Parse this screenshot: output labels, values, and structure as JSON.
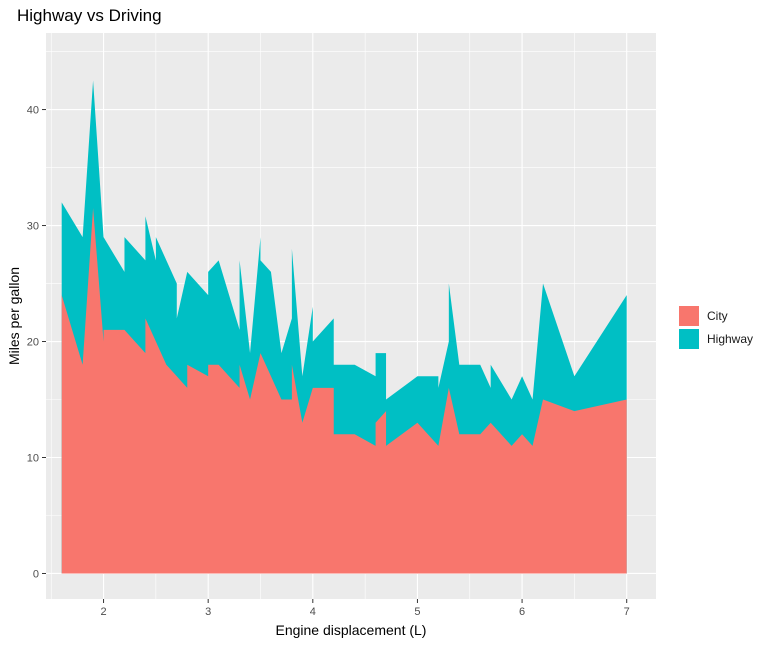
{
  "chart_data": {
    "type": "area",
    "title": "Highway vs Driving",
    "xlabel": "Engine displacement (L)",
    "ylabel": "Miles per gallon",
    "xlim": [
      1.45,
      7.28
    ],
    "ylim": [
      -2.2,
      46.6
    ],
    "x_ticks": [
      2,
      3,
      4,
      5,
      6,
      7
    ],
    "y_ticks": [
      0,
      10,
      20,
      30,
      40
    ],
    "grid": true,
    "stacked": true,
    "legend_position": "right",
    "series": [
      {
        "name": "City",
        "color": "#F8766D",
        "points": [
          [
            1.6,
            24
          ],
          [
            1.8,
            18
          ],
          [
            1.9,
            31.5
          ],
          [
            2.0,
            20
          ],
          [
            2.0,
            21
          ],
          [
            2.2,
            21
          ],
          [
            2.4,
            19
          ],
          [
            2.4,
            22
          ],
          [
            2.5,
            20
          ],
          [
            2.6,
            18
          ],
          [
            2.7,
            17
          ],
          [
            2.8,
            16
          ],
          [
            2.8,
            18
          ],
          [
            2.9,
            17.5
          ],
          [
            3.0,
            17
          ],
          [
            3.0,
            18
          ],
          [
            3.1,
            18
          ],
          [
            3.3,
            16
          ],
          [
            3.3,
            18
          ],
          [
            3.4,
            15
          ],
          [
            3.5,
            19
          ],
          [
            3.6,
            17
          ],
          [
            3.7,
            15
          ],
          [
            3.8,
            15
          ],
          [
            3.8,
            18
          ],
          [
            3.9,
            13
          ],
          [
            4.0,
            16
          ],
          [
            4.2,
            16
          ],
          [
            4.2,
            12
          ],
          [
            4.4,
            12
          ],
          [
            4.6,
            11
          ],
          [
            4.6,
            13
          ],
          [
            4.7,
            14
          ],
          [
            4.7,
            11
          ],
          [
            5.0,
            13
          ],
          [
            5.2,
            11
          ],
          [
            5.3,
            16
          ],
          [
            5.4,
            12
          ],
          [
            5.6,
            12
          ],
          [
            5.7,
            13
          ],
          [
            5.9,
            11
          ],
          [
            6.0,
            12
          ],
          [
            6.1,
            11
          ],
          [
            6.2,
            15
          ],
          [
            6.5,
            14
          ],
          [
            7.0,
            15
          ]
        ]
      },
      {
        "name": "Highway",
        "color": "#00BFC4",
        "points": [
          [
            1.6,
            33
          ],
          [
            1.6,
            32
          ],
          [
            1.8,
            29
          ],
          [
            1.9,
            42.5
          ],
          [
            2.0,
            29
          ],
          [
            2.2,
            26
          ],
          [
            2.2,
            29
          ],
          [
            2.4,
            27
          ],
          [
            2.4,
            30.8
          ],
          [
            2.5,
            27
          ],
          [
            2.5,
            29
          ],
          [
            2.7,
            25
          ],
          [
            2.7,
            22
          ],
          [
            2.8,
            26
          ],
          [
            3.0,
            24
          ],
          [
            3.0,
            26
          ],
          [
            3.1,
            27
          ],
          [
            3.3,
            21
          ],
          [
            3.3,
            27
          ],
          [
            3.4,
            19
          ],
          [
            3.5,
            29
          ],
          [
            3.5,
            27
          ],
          [
            3.6,
            26
          ],
          [
            3.7,
            19
          ],
          [
            3.8,
            22
          ],
          [
            3.8,
            28
          ],
          [
            3.9,
            17
          ],
          [
            4.0,
            23
          ],
          [
            4.0,
            20
          ],
          [
            4.2,
            22
          ],
          [
            4.2,
            18
          ],
          [
            4.4,
            18
          ],
          [
            4.6,
            17
          ],
          [
            4.6,
            19
          ],
          [
            4.7,
            19
          ],
          [
            4.7,
            15
          ],
          [
            5.0,
            17
          ],
          [
            5.2,
            17
          ],
          [
            5.2,
            16
          ],
          [
            5.3,
            20
          ],
          [
            5.3,
            25
          ],
          [
            5.4,
            18
          ],
          [
            5.6,
            18
          ],
          [
            5.7,
            16
          ],
          [
            5.7,
            18
          ],
          [
            5.9,
            15
          ],
          [
            6.0,
            17
          ],
          [
            6.1,
            15
          ],
          [
            6.2,
            25
          ],
          [
            6.5,
            17
          ],
          [
            7.0,
            24
          ]
        ]
      }
    ]
  }
}
